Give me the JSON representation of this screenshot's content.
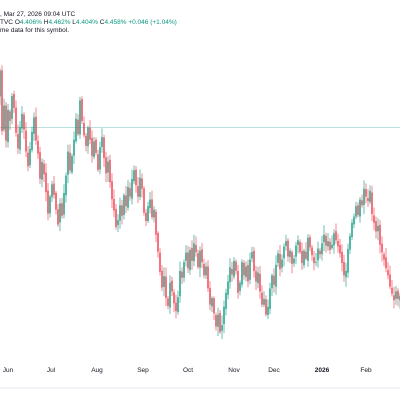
{
  "header": {
    "line1_left": ", Mar 27, 2026 09:04 UTC",
    "line2_left": "TVC",
    "open_label": "O",
    "open": "4.406%",
    "high_label": "H",
    "high": "4.462%",
    "low_label": "L",
    "low": "4.404%",
    "close_label": "C",
    "close": "4.458%",
    "change": "+0.046 (+1.04%)",
    "line3_left": "me data for this symbol."
  },
  "colors": {
    "up": "#089981",
    "down": "#f23645",
    "reference_line": "#9fd8d2",
    "grid": "#f0f3fa",
    "text": "#131722"
  },
  "chart_data": {
    "type": "candlestick",
    "x_tick_labels": [
      "Jun",
      "Jul",
      "Aug",
      "Sep",
      "Oct",
      "Nov",
      "Dec",
      "2026",
      "Feb"
    ],
    "x_tick_dates": [
      "2025-06-01",
      "2025-07-01",
      "2025-08-01",
      "2025-09-01",
      "2025-10-01",
      "2025-11-01",
      "2025-12-01",
      "2026-01-01",
      "2026-02-01"
    ],
    "y_range": [
      3.9,
      4.65
    ],
    "reference_line_value": 4.45,
    "grid": false,
    "series": [
      {
        "daily_close": [
          4.48,
          4.521,
          4.58,
          4.442,
          4.5,
          4.42,
          4.49,
          4.465,
          4.522,
          4.495,
          4.438,
          4.402,
          4.451,
          4.481,
          4.445,
          4.395,
          4.361,
          4.401,
          4.44,
          4.473,
          4.42,
          4.39,
          4.333,
          4.371,
          4.343,
          4.302,
          4.253,
          4.292,
          4.32,
          4.296,
          4.262,
          4.228,
          4.276,
          4.248,
          4.3,
          4.34,
          4.395,
          4.352,
          4.385,
          4.422,
          4.47,
          4.435,
          4.512,
          4.465,
          4.432,
          4.408,
          4.45,
          4.422,
          4.385,
          4.418,
          4.392,
          4.353,
          4.405,
          4.428,
          4.38,
          4.345,
          4.372,
          4.325,
          4.286,
          4.26,
          4.222,
          4.238,
          4.272,
          4.248,
          4.295,
          4.27,
          4.314,
          4.292,
          4.332,
          4.352,
          4.318,
          4.292,
          4.335,
          4.31,
          4.255,
          4.236,
          4.27,
          4.285,
          4.245,
          4.262,
          4.205,
          4.166,
          4.12,
          4.084,
          4.11,
          4.06,
          4.042,
          4.095,
          4.075,
          4.048,
          4.03,
          4.062,
          4.122,
          4.106,
          4.142,
          4.164,
          4.128,
          4.17,
          4.145,
          4.185,
          4.165,
          4.131,
          4.168,
          4.142,
          4.112,
          4.132,
          4.082,
          4.045,
          4.06,
          4.025,
          3.995,
          4.022,
          3.982,
          3.998,
          4.04,
          4.072,
          4.098,
          4.13,
          4.114,
          4.145,
          4.122,
          4.072,
          4.095,
          4.142,
          4.112,
          4.132,
          4.098,
          4.148,
          4.165,
          4.122,
          4.098,
          4.118,
          4.075,
          4.045,
          4.058,
          4.022,
          4.04,
          4.082,
          4.112,
          4.09,
          4.136,
          4.162,
          4.126,
          4.148,
          4.178,
          4.19,
          4.155,
          4.168,
          4.138,
          4.15,
          4.18,
          4.192,
          4.165,
          4.14,
          4.168,
          4.15,
          4.198,
          4.176,
          4.158,
          4.14,
          4.142,
          4.173,
          4.16,
          4.185,
          4.205,
          4.18,
          4.19,
          4.17,
          4.182,
          4.208,
          4.192,
          4.178,
          4.162,
          4.14,
          4.112,
          4.122,
          4.172,
          4.202,
          4.232,
          4.246,
          4.27,
          4.25,
          4.285,
          4.272,
          4.31,
          4.292,
          4.282,
          4.305,
          4.252,
          4.232,
          4.212,
          4.225,
          4.182,
          4.165,
          4.148,
          4.128,
          4.112,
          4.086,
          4.07,
          4.055,
          4.075,
          4.058,
          4.065,
          4.088,
          4.072,
          4.095
        ]
      }
    ]
  }
}
